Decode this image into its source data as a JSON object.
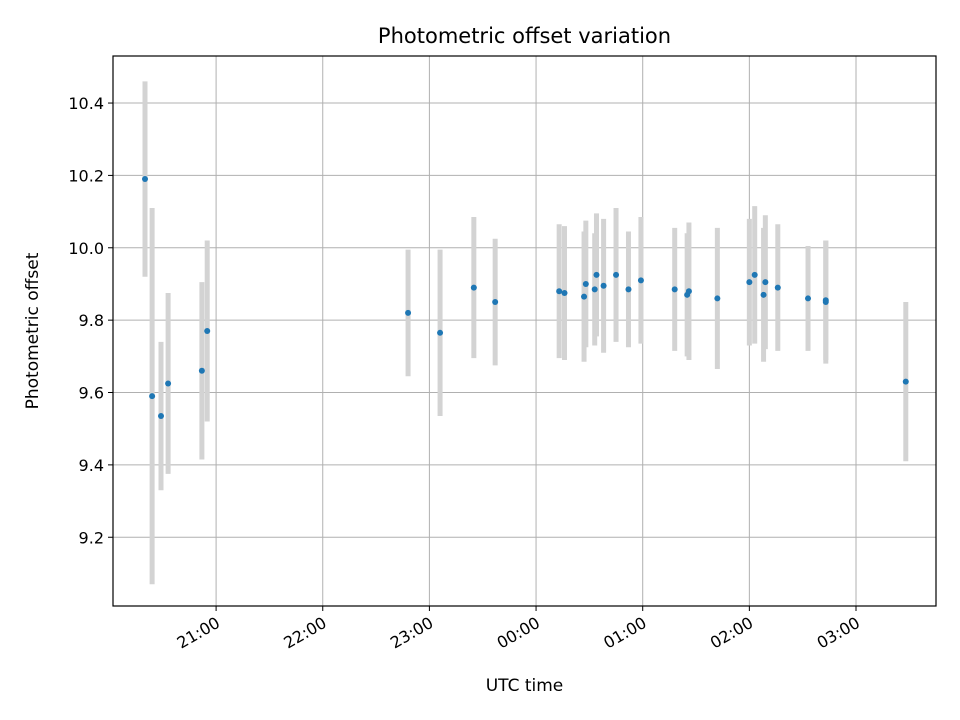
{
  "chart_data": {
    "type": "scatter",
    "title": "Photometric offset variation",
    "xlabel": "UTC time",
    "ylabel": "Photometric offset",
    "grid": true,
    "x_ticks": [
      "21:00",
      "22:00",
      "23:00",
      "00:00",
      "01:00",
      "02:00",
      "03:00"
    ],
    "y_ticks": [
      "9.2",
      "9.4",
      "9.6",
      "9.8",
      "10.0",
      "10.2",
      "10.4"
    ],
    "ylim": [
      9.01,
      10.53
    ],
    "xlim": [
      "20:02",
      "03:45"
    ],
    "colors": {
      "point": "#1f77b4",
      "errorbar": "#d3d3d3",
      "grid": "#b0b0b0"
    },
    "series": [
      {
        "x": [
          "20:20",
          "20:24",
          "20:29",
          "20:33",
          "20:52",
          "20:55",
          "22:48",
          "23:06",
          "23:25",
          "23:37",
          "00:13",
          "00:16",
          "00:27",
          "00:28",
          "00:33",
          "00:34",
          "00:38",
          "00:45",
          "00:52",
          "00:59",
          "01:18",
          "01:25",
          "01:26",
          "01:42",
          "02:00",
          "02:03",
          "02:08",
          "02:09",
          "02:16",
          "02:33",
          "02:43",
          "02:43",
          "03:28"
        ],
        "y": [
          10.19,
          9.59,
          9.535,
          9.625,
          9.66,
          9.77,
          9.82,
          9.765,
          9.89,
          9.85,
          9.88,
          9.875,
          9.865,
          9.9,
          9.885,
          9.925,
          9.895,
          9.925,
          9.885,
          9.91,
          9.885,
          9.87,
          9.88,
          9.86,
          9.905,
          9.925,
          9.87,
          9.905,
          9.89,
          9.86,
          9.85,
          9.855,
          9.63
        ],
        "error": [
          0.27,
          0.52,
          0.205,
          0.25,
          0.245,
          0.25,
          0.175,
          0.23,
          0.195,
          0.175,
          0.185,
          0.185,
          0.18,
          0.175,
          0.155,
          0.17,
          0.185,
          0.185,
          0.16,
          0.175,
          0.17,
          0.17,
          0.19,
          0.195,
          0.175,
          0.19,
          0.185,
          0.185,
          0.175,
          0.145,
          0.17,
          0.165,
          0.22
        ]
      }
    ]
  }
}
